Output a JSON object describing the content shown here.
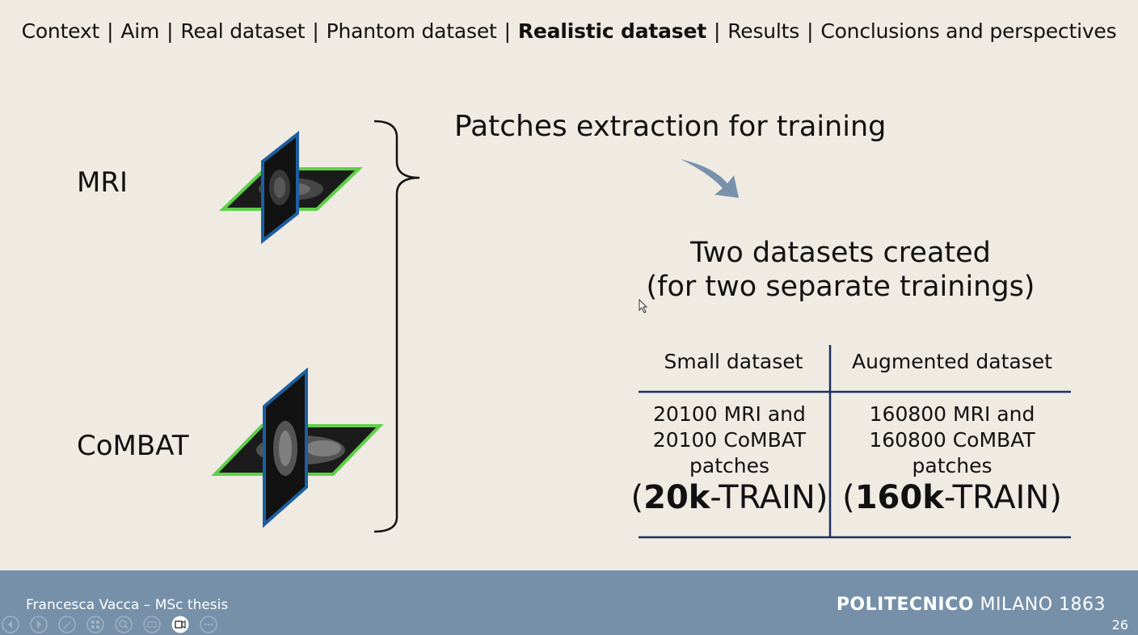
{
  "nav": {
    "items": [
      {
        "label": "Context"
      },
      {
        "label": "Aim"
      },
      {
        "label": "Real dataset"
      },
      {
        "label": "Phantom dataset"
      },
      {
        "label": "Realistic dataset",
        "active": true
      },
      {
        "label": "Results"
      },
      {
        "label": "Conclusions and perspectives"
      }
    ],
    "separator": "|"
  },
  "left": {
    "mri_label": "MRI",
    "combat_label": "CoMBAT"
  },
  "right": {
    "title_strong": "Patches",
    "title_rest": " extraction for training",
    "created_line1": "Two datasets created",
    "created_line2": "(for two separate trainings)",
    "table": {
      "col1_header": "Small dataset",
      "col2_header": "Augmented dataset",
      "col1_line1": "20100 MRI and",
      "col1_line2": "20100 CoMBAT",
      "col1_line3": "patches",
      "col1_big_open": "(",
      "col1_big_bold": "20k",
      "col1_big_rest": "-TRAIN)",
      "col2_line1": "160800 MRI and",
      "col2_line2": "160800 CoMBAT",
      "col2_line3": "patches",
      "col2_big_open": "(",
      "col2_big_bold": "160k",
      "col2_big_rest": "-TRAIN)"
    }
  },
  "footer": {
    "author": "Francesca Vacca – MSc thesis",
    "brand_bold": "POLITECNICO",
    "brand_rest": " MILANO 1863",
    "page_number": "26"
  },
  "colors": {
    "background": "#efebe3",
    "footer": "#7690a9",
    "slice_blue": "#1d5fa0",
    "slice_green": "#5fcf4a",
    "arrow": "#7892ab",
    "table_line": "#1f2f5e"
  }
}
